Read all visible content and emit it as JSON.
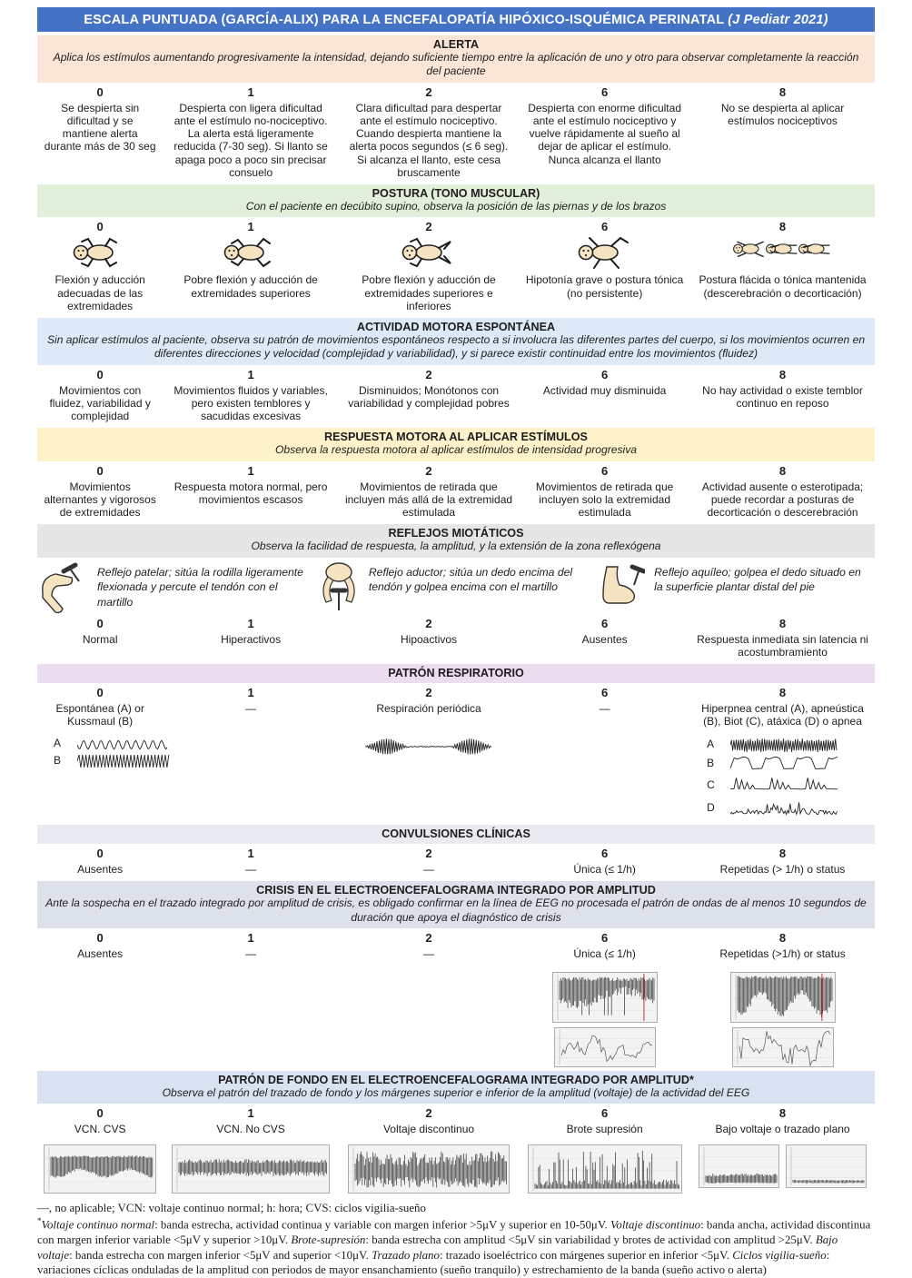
{
  "title": {
    "main": "ESCALA PUNTUADA (GARCÍA-ALIX) PARA LA ENCEFALOPATÍA HIPÓXICO-ISQUÉMICA PERINATAL ",
    "ref": "(J Pediatr 2021)"
  },
  "scores": [
    "0",
    "1",
    "2",
    "6",
    "8"
  ],
  "sections": {
    "alerta": {
      "title": "ALERTA",
      "subtitle": "Aplica los estímulos aumentando progresivamente la intensidad, dejando suficiente tiempo entre la aplicación de uno y otro para observar completamente la reacción del paciente",
      "cells": [
        "Se despierta sin dificultad y se mantiene alerta durante más de 30 seg",
        "Despierta con ligera dificultad ante el estímulo no-nociceptivo. La alerta está ligeramente reducida (7-30 seg). Si llanto se apaga poco a poco sin precisar consuelo",
        "Clara dificultad para despertar ante el estímulo nociceptivo. Cuando despierta mantiene la alerta pocos segundos (≤ 6 seg). Si alcanza el llanto, este cesa bruscamente",
        "Despierta con enorme dificultad ante el estímulo nociceptivo y vuelve rápidamente al sueño al dejar de aplicar el estímulo. Nunca alcanza el llanto",
        "No se despierta al aplicar estímulos nociceptivos"
      ]
    },
    "postura": {
      "title": "POSTURA (TONO MUSCULAR)",
      "subtitle": "Con el paciente en decúbito supino, observa la posición de las piernas y de los brazos",
      "cells": [
        "Flexión y aducción adecuadas de las extremidades",
        "Pobre flexión y aducción de extremidades superiores",
        "Pobre flexión y aducción de extremidades superiores e inferiores",
        "Hipotonía grave o postura tónica (no persistente)",
        "Postura flácida o tónica mantenida (descerebración o decorticación)"
      ]
    },
    "actividad": {
      "title": "ACTIVIDAD MOTORA ESPONTÁNEA",
      "subtitle": "Sin aplicar estímulos al paciente, observa su patrón de movimientos espontáneos respecto a si involucra las diferentes partes del cuerpo, si los movimientos ocurren en diferentes direcciones y velocidad (complejidad y variabilidad), y si parece existir continuidad entre los movimientos (fluidez)",
      "cells": [
        "Movimientos con fluidez, variabilidad y complejidad",
        "Movimientos fluidos y variables, pero existen temblores y sacudidas excesivas",
        "Disminuidos; Monótonos con variabilidad y complejidad pobres",
        "Actividad muy disminuida",
        "No hay actividad o existe temblor continuo en reposo"
      ]
    },
    "respuesta": {
      "title": "RESPUESTA MOTORA AL APLICAR ESTÍMULOS",
      "subtitle": "Observa la respuesta motora al aplicar estímulos de intensidad progresiva",
      "cells": [
        "Movimientos alternantes y vigorosos de extremidades",
        "Respuesta motora normal, pero movimientos escasos",
        "Movimientos de retirada que incluyen más allá de la extremidad estimulada",
        "Movimientos de retirada que incluyen solo la extremidad estimulada",
        "Actividad ausente o esterotipada; puede recordar a posturas de decorticación o descerebración"
      ]
    },
    "reflejos": {
      "title": "REFLEJOS MIOTÁTICOS",
      "subtitle": "Observa la facilidad de respuesta, la amplitud, y la extensión de la zona reflexógena",
      "illustrations": [
        "Reflejo patelar; sitúa la rodilla ligeramente flexionada y percute el tendón con el martillo",
        "Reflejo aductor; sitúa un dedo encima del tendón y golpea encima con el martillo",
        "Reflejo aquíleo; golpea el dedo situado en la superficie plantar distal del pie"
      ],
      "cells": [
        "Normal",
        "Hiperactivos",
        "Hipoactivos",
        "Ausentes",
        "Respuesta inmediata sin latencia ni acostumbramiento"
      ]
    },
    "respiratorio": {
      "title": "PATRÓN RESPIRATORIO",
      "cells": [
        "Espontánea (A) or Kussmaul (B)",
        "—",
        "Respiración periódica",
        "—",
        "Hiperpnea central (A), apneústica (B), Biot (C), atáxica (D) o apnea"
      ],
      "wave_labels": {
        "a": "A",
        "b": "B",
        "c": "C",
        "d": "D"
      }
    },
    "convulsiones": {
      "title": "CONVULSIONES CLÍNICAS",
      "cells": [
        "Ausentes",
        "—",
        "—",
        "Única (≤ 1/h)",
        "Repetidas (> 1/h) o status"
      ]
    },
    "crisis": {
      "title": "CRISIS EN EL ELECTROENCEFALOGRAMA INTEGRADO POR AMPLITUD",
      "subtitle": "Ante la sospecha en el trazado integrado por amplitud de crisis, es obligado confirmar en la línea de EEG no procesada el patrón de ondas de al menos 10 segundos de duración que apoya el diagnóstico de crisis",
      "cells": [
        "Ausentes",
        "—",
        "—",
        "Única (≤ 1/h)",
        "Repetidas (>1/h) or status"
      ]
    },
    "fondo": {
      "title": "PATRÓN DE FONDO EN EL ELECTROENCEFALOGRAMA INTEGRADO POR AMPLITUD*",
      "subtitle": "Observa el patrón del trazado de fondo y los márgenes superior e inferior de la amplitud (voltaje) de la actividad del EEG",
      "cells": [
        "VCN. CVS",
        "VCN. No CVS",
        "Voltaje discontinuo",
        "Brote supresión",
        "Bajo voltaje o trazado plano"
      ]
    }
  },
  "footnotes": {
    "abbr": "—, no aplicable; VCN: voltaje continuo normal; h: hora; CVS: ciclos vigilia-sueño",
    "asterisk": "*",
    "definitions": [
      {
        "text": "Voltaje continuo normal",
        "italic": true
      },
      {
        "text": ": banda estrecha, actividad continua y variable con margen inferior >5μV y superior en 10-50μV. "
      },
      {
        "text": "Voltaje discontinuo",
        "italic": true
      },
      {
        "text": ": banda ancha, actividad discontinua con margen inferior variable <5μV y superior >10μV. "
      },
      {
        "text": "Brote-supresión",
        "italic": true
      },
      {
        "text": ": banda estrecha con amplitud <5μV sin variabilidad y brotes de actividad con amplitud >25μV. "
      },
      {
        "text": "Bajo voltaje",
        "italic": true
      },
      {
        "text": ": banda estrecha con margen inferior <5μV and superior <10μV. "
      },
      {
        "text": "Trazado plano",
        "italic": true
      },
      {
        "text": ": trazado isoeléctrico con márgenes superior en inferior <5μV. "
      },
      {
        "text": "Ciclos vigilia-sueño",
        "italic": true
      },
      {
        "text": ": variaciones cíclicas onduladas de la amplitud con periodos de mayor ensanchamiento (sueño tranquilo) y estrechamiento de la banda (sueño activo o alerta)"
      }
    ]
  },
  "colors": {
    "title_bar": "#4472c4",
    "alerta": "#fbe5d6",
    "postura": "#e2efda",
    "actividad": "#dde9f6",
    "respuesta": "#fef2cb",
    "reflejos": "#e7e6e6",
    "respiratorio": "#ecdcef",
    "convulsiones": "#e9ebf1",
    "crisis": "#dde1ea",
    "fondo": "#d9e2f0"
  }
}
